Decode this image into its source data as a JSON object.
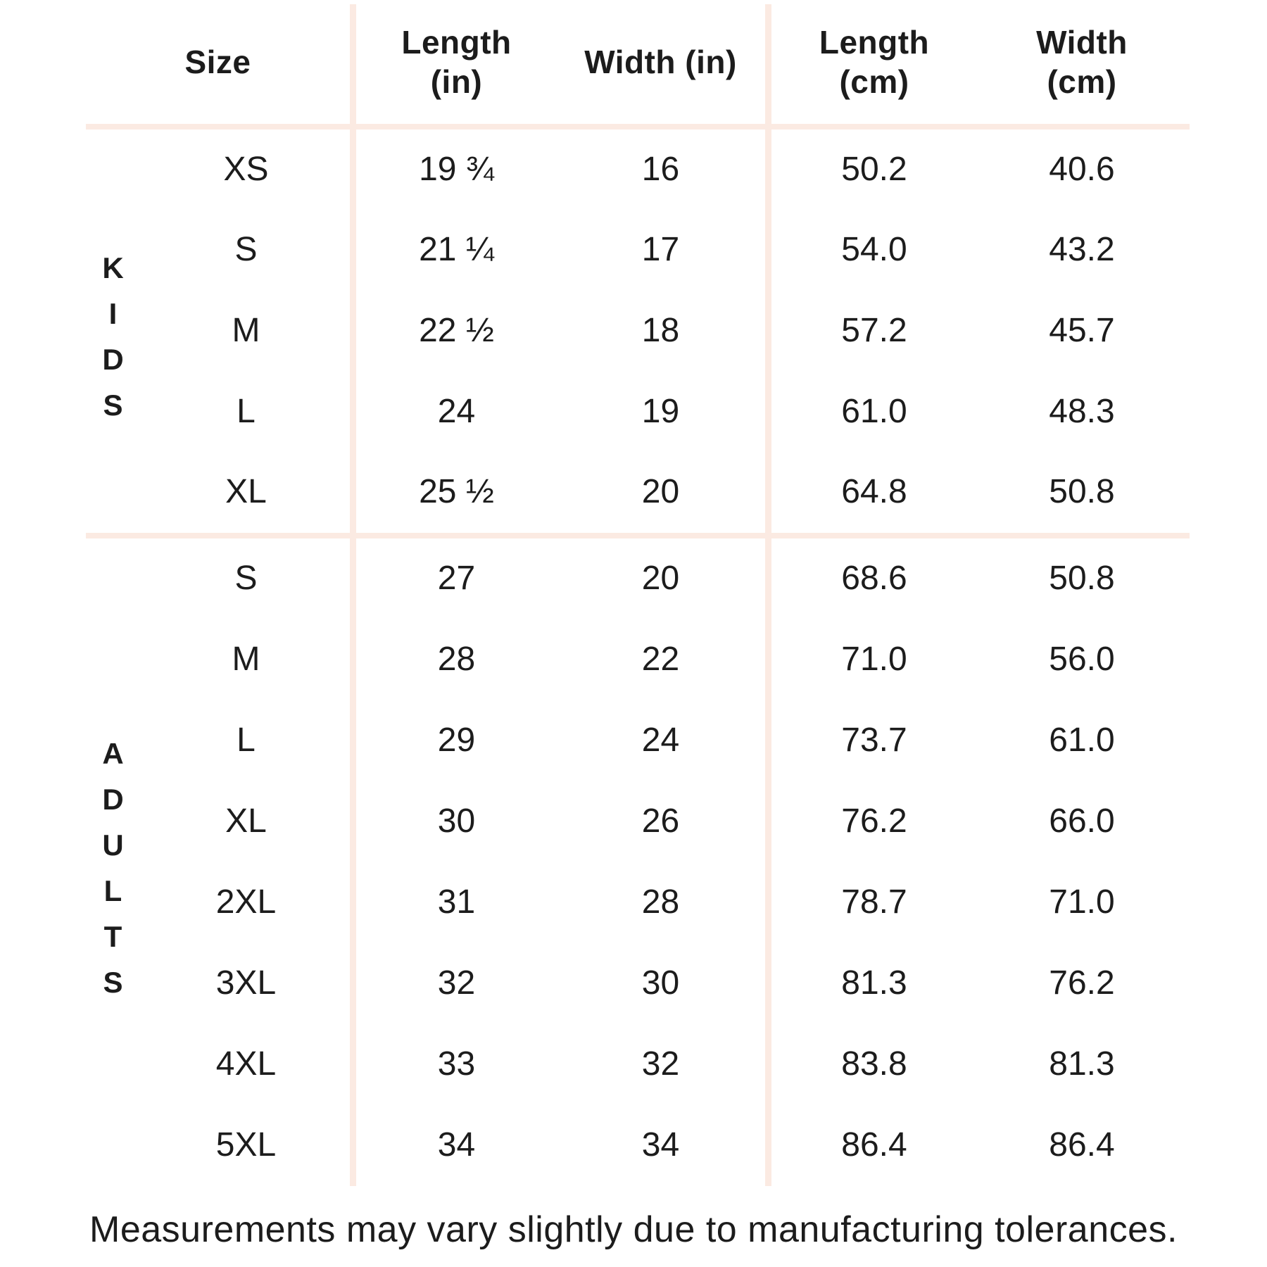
{
  "chart_data": {
    "type": "table",
    "columns": [
      {
        "label": "Size"
      },
      {
        "label": "Length",
        "sub": "(in)"
      },
      {
        "label": "Width (in)"
      },
      {
        "label": "Length",
        "sub": "(cm)"
      },
      {
        "label": "Width",
        "sub": "(cm)"
      }
    ],
    "sections": [
      {
        "name": "KIDS",
        "rows": [
          {
            "size": "XS",
            "length_in": "19 ¾",
            "width_in": "16",
            "length_cm": "50.2",
            "width_cm": "40.6"
          },
          {
            "size": "S",
            "length_in": "21 ¼",
            "width_in": "17",
            "length_cm": "54.0",
            "width_cm": "43.2"
          },
          {
            "size": "M",
            "length_in": "22 ½",
            "width_in": "18",
            "length_cm": "57.2",
            "width_cm": "45.7"
          },
          {
            "size": "L",
            "length_in": "24",
            "width_in": "19",
            "length_cm": "61.0",
            "width_cm": "48.3"
          },
          {
            "size": "XL",
            "length_in": "25 ½",
            "width_in": "20",
            "length_cm": "64.8",
            "width_cm": "50.8"
          }
        ]
      },
      {
        "name": "ADULTS",
        "rows": [
          {
            "size": "S",
            "length_in": "27",
            "width_in": "20",
            "length_cm": "68.6",
            "width_cm": "50.8"
          },
          {
            "size": "M",
            "length_in": "28",
            "width_in": "22",
            "length_cm": "71.0",
            "width_cm": "56.0"
          },
          {
            "size": "L",
            "length_in": "29",
            "width_in": "24",
            "length_cm": "73.7",
            "width_cm": "61.0"
          },
          {
            "size": "XL",
            "length_in": "30",
            "width_in": "26",
            "length_cm": "76.2",
            "width_cm": "66.0"
          },
          {
            "size": "2XL",
            "length_in": "31",
            "width_in": "28",
            "length_cm": "78.7",
            "width_cm": "71.0"
          },
          {
            "size": "3XL",
            "length_in": "32",
            "width_in": "30",
            "length_cm": "81.3",
            "width_cm": "76.2"
          },
          {
            "size": "4XL",
            "length_in": "33",
            "width_in": "32",
            "length_cm": "83.8",
            "width_cm": "81.3"
          },
          {
            "size": "5XL",
            "length_in": "34",
            "width_in": "34",
            "length_cm": "86.4",
            "width_cm": "86.4"
          }
        ]
      }
    ],
    "footnote": "Measurements may vary slightly due to manufacturing tolerances.",
    "layout": {
      "grid": "off",
      "header_style": "bold",
      "section_labels": "vertical"
    }
  },
  "colors": {
    "divider": "#fbeae2",
    "text": "#1c1c1c",
    "background": "#ffffff"
  }
}
